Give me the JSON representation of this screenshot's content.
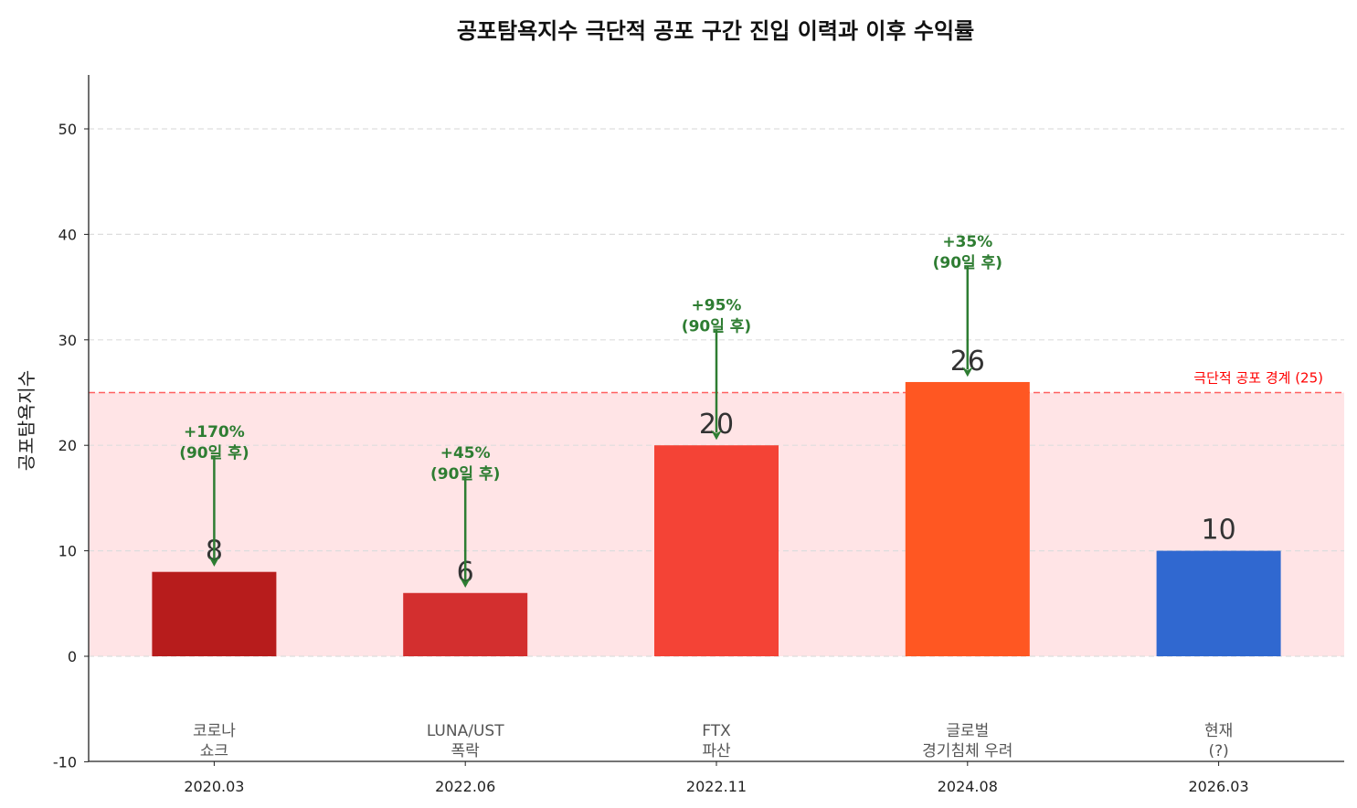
{
  "chart_data": {
    "type": "bar",
    "title": "공포탐욕지수 극단적 공포 구간 진입 이력과 이후 수익률",
    "xlabel": "",
    "ylabel": "공포탐욕지수",
    "ylim": [
      -10,
      55
    ],
    "yticks": [
      -10,
      0,
      10,
      20,
      30,
      40,
      50
    ],
    "grid": "y-dashed",
    "categories": [
      "2020.03",
      "2022.06",
      "2022.11",
      "2024.08",
      "2026.03"
    ],
    "event_labels": [
      [
        "코로나",
        "쇼크"
      ],
      [
        "LUNA/UST",
        "폭락"
      ],
      [
        "FTX",
        "파산"
      ],
      [
        "글로벌",
        "경기침체 우려"
      ],
      [
        "현재",
        "(?)"
      ]
    ],
    "values": [
      8,
      6,
      20,
      26,
      10
    ],
    "colors": [
      "#b71c1c",
      "#d32f2f",
      "#f44336",
      "#ff5722",
      "#3068d0"
    ],
    "annotations": [
      {
        "index": 0,
        "lines": [
          "+170%",
          "(90일 후)"
        ]
      },
      {
        "index": 1,
        "lines": [
          "+45%",
          "(90일 후)"
        ]
      },
      {
        "index": 2,
        "lines": [
          "+95%",
          "(90일 후)"
        ]
      },
      {
        "index": 3,
        "lines": [
          "+35%",
          "(90일 후)"
        ]
      }
    ],
    "annotation_color": "#2e7d32",
    "threshold": {
      "value": 25,
      "label": "극단적 공포 경계 (25)",
      "color": "#ff0000",
      "band": [
        0,
        25
      ],
      "band_color": "#ffe4e6"
    }
  }
}
